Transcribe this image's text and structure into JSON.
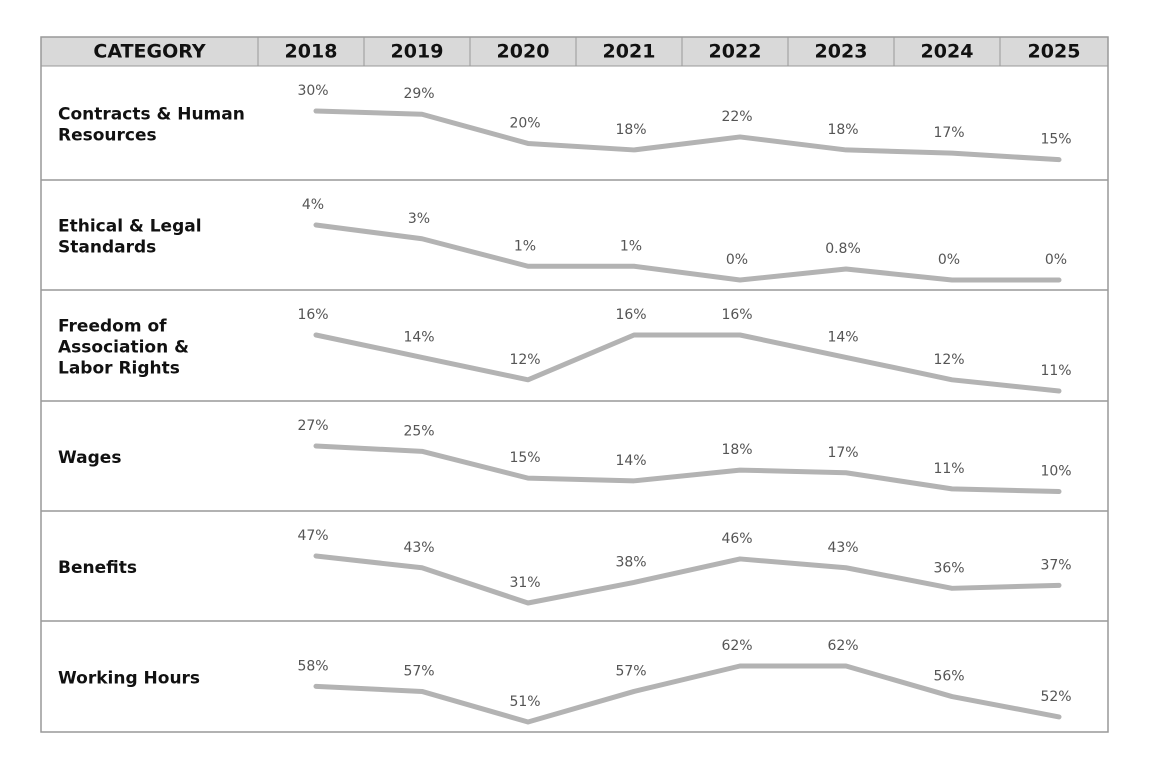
{
  "table": {
    "header": [
      "CATEGORY",
      "2018",
      "2019",
      "2020",
      "2021",
      "2022",
      "2023",
      "2024",
      "2025"
    ],
    "line_color": "#b3b3b3",
    "rows": [
      {
        "label": "Contracts & Human Resources",
        "values": [
          30,
          29,
          20,
          18,
          22,
          18,
          17,
          15
        ],
        "value_labels": [
          "30%",
          "29%",
          "20%",
          "18%",
          "22%",
          "18%",
          "17%",
          "15%"
        ]
      },
      {
        "label": "Ethical & Legal Standards",
        "values": [
          4,
          3,
          1,
          1,
          0,
          0.8,
          0,
          0
        ],
        "value_labels": [
          "4%",
          "3%",
          "1%",
          "1%",
          "0%",
          "0.8%",
          "0%",
          "0%"
        ]
      },
      {
        "label": "Freedom of Association & Labor Rights",
        "values": [
          16,
          14,
          12,
          16,
          16,
          14,
          12,
          11
        ],
        "value_labels": [
          "16%",
          "14%",
          "12%",
          "16%",
          "16%",
          "14%",
          "12%",
          "11%"
        ]
      },
      {
        "label": "Wages",
        "values": [
          27,
          25,
          15,
          14,
          18,
          17,
          11,
          10
        ],
        "value_labels": [
          "27%",
          "25%",
          "15%",
          "14%",
          "18%",
          "17%",
          "11%",
          "10%"
        ]
      },
      {
        "label": "Benefits",
        "values": [
          47,
          43,
          31,
          38,
          46,
          43,
          36,
          37
        ],
        "value_labels": [
          "47%",
          "43%",
          "31%",
          "38%",
          "46%",
          "43%",
          "36%",
          "37%"
        ]
      },
      {
        "label": "Working Hours",
        "values": [
          58,
          57,
          51,
          57,
          62,
          62,
          56,
          52
        ],
        "value_labels": [
          "58%",
          "57%",
          "51%",
          "57%",
          "62%",
          "62%",
          "56%",
          "52%"
        ]
      }
    ]
  }
}
